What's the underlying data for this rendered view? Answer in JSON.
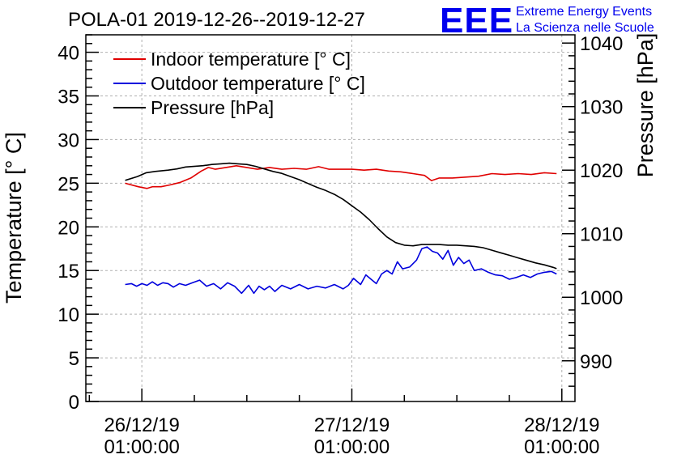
{
  "chart_data": {
    "type": "line",
    "title": "POLA-01 2019-12-26--2019-12-27",
    "ylabel": "Temperature [° C]",
    "y2label": "Pressure [hPa]",
    "xlabel": "",
    "ylim": [
      0,
      42
    ],
    "y2lim": [
      983.6,
      1041.3
    ],
    "yticks": [
      0,
      5,
      10,
      15,
      20,
      25,
      30,
      35,
      40
    ],
    "y2ticks": [
      990,
      1000,
      1010,
      1020,
      1030,
      1040
    ],
    "x_range_hours": [
      -6.4,
      49.5
    ],
    "xticks": [
      {
        "hours": 0,
        "line1": "26/12/19",
        "line2": "01:00:00"
      },
      {
        "hours": 24,
        "line1": "27/12/19",
        "line2": "01:00:00"
      },
      {
        "hours": 48,
        "line1": "28/12/19",
        "line2": "01:00:00"
      }
    ],
    "grid": true,
    "legend_position": "top-left",
    "series": [
      {
        "name": "Indoor temperature [° C]",
        "axis": "left",
        "color": "#e00000",
        "x": [
          -1.9,
          -0.4,
          0.6,
          1.2,
          2.2,
          3.2,
          4.4,
          5.6,
          6.8,
          7.6,
          8.4,
          9.6,
          10.8,
          12,
          13.2,
          14.6,
          16,
          17.4,
          18.8,
          20.2,
          21.4,
          22.6,
          24,
          25.4,
          26.8,
          28.2,
          29.6,
          31,
          32.3,
          33.1,
          34,
          35.5,
          37,
          38.5,
          40,
          41.5,
          43,
          44.5,
          46,
          47.4
        ],
        "values": [
          25.0,
          24.6,
          24.4,
          24.6,
          24.6,
          24.8,
          25.1,
          25.6,
          26.4,
          26.8,
          26.6,
          26.8,
          27.0,
          26.8,
          26.6,
          26.8,
          26.6,
          26.7,
          26.6,
          26.9,
          26.6,
          26.6,
          26.6,
          26.5,
          26.6,
          26.4,
          26.3,
          26.1,
          25.9,
          25.3,
          25.6,
          25.6,
          25.7,
          25.8,
          26.1,
          26.0,
          26.1,
          26.0,
          26.2,
          26.1
        ]
      },
      {
        "name": "Outdoor temperature [° C]",
        "axis": "left",
        "color": "#0000dd",
        "x": [
          -1.9,
          -1.2,
          -0.6,
          0,
          0.6,
          1.2,
          1.8,
          2.4,
          3.0,
          3.6,
          4.3,
          5.0,
          5.8,
          6.6,
          7.4,
          8.2,
          9.0,
          9.8,
          10.6,
          11.4,
          12.2,
          12.8,
          13.4,
          14.0,
          14.6,
          15.2,
          16.0,
          17.0,
          18.0,
          19.0,
          20.0,
          21.0,
          22.0,
          23.0,
          23.6,
          24.2,
          25.0,
          25.6,
          26.2,
          26.8,
          27.4,
          28.0,
          28.6,
          29.2,
          29.8,
          30.6,
          31.4,
          32.0,
          32.6,
          33.2,
          33.8,
          34.4,
          35.0,
          35.6,
          36.2,
          36.8,
          37.4,
          38.0,
          38.8,
          39.6,
          40.4,
          41.2,
          42.0,
          42.8,
          43.6,
          44.4,
          45.2,
          46.0,
          46.8,
          47.4
        ],
        "values": [
          13.4,
          13.5,
          13.2,
          13.5,
          13.3,
          13.7,
          13.3,
          13.6,
          13.5,
          13.1,
          13.5,
          13.3,
          13.6,
          13.9,
          13.2,
          13.5,
          12.9,
          13.6,
          13.2,
          12.4,
          13.3,
          12.4,
          13.2,
          12.8,
          13.2,
          12.6,
          13.3,
          12.9,
          13.4,
          12.9,
          13.2,
          13.0,
          13.4,
          12.9,
          13.3,
          14.1,
          13.4,
          14.5,
          14.0,
          13.5,
          14.6,
          15.0,
          14.6,
          16.0,
          15.2,
          15.4,
          16.2,
          17.5,
          17.7,
          17.2,
          17.0,
          16.3,
          17.3,
          15.6,
          16.5,
          15.8,
          16.2,
          15.0,
          15.2,
          14.8,
          14.5,
          14.4,
          14.0,
          14.2,
          14.5,
          14.2,
          14.6,
          14.8,
          14.9,
          14.6
        ]
      },
      {
        "name": "Pressure [hPa]",
        "axis": "right",
        "color": "#000000",
        "x": [
          -1.9,
          -0.5,
          0.5,
          1.5,
          3,
          4,
          5,
          7,
          8,
          9,
          10,
          11,
          12,
          13,
          14,
          15,
          16,
          17,
          18,
          19,
          20,
          21,
          22,
          23,
          24,
          25,
          26,
          27,
          28,
          29,
          30,
          31,
          32,
          33,
          34,
          35,
          36,
          37,
          38,
          39,
          40,
          41,
          42,
          43,
          44,
          45,
          46,
          47,
          47.4
        ],
        "values": [
          1018.4,
          1019.0,
          1019.6,
          1019.8,
          1020.0,
          1020.2,
          1020.5,
          1020.7,
          1020.9,
          1021.0,
          1021.1,
          1021.0,
          1020.9,
          1020.6,
          1020.2,
          1019.8,
          1019.5,
          1019.0,
          1018.5,
          1017.9,
          1017.3,
          1016.8,
          1016.2,
          1015.4,
          1014.4,
          1013.4,
          1012.2,
          1010.8,
          1009.5,
          1008.6,
          1008.2,
          1008.1,
          1008.3,
          1008.3,
          1008.3,
          1008.2,
          1008.2,
          1008.1,
          1008.0,
          1007.8,
          1007.4,
          1007.0,
          1006.6,
          1006.2,
          1005.8,
          1005.4,
          1005.1,
          1004.7,
          1004.5
        ]
      }
    ]
  },
  "logo": {
    "mark": "EEE",
    "line1": "Extreme Energy Events",
    "line2": "La Scienza nelle Scuole"
  }
}
